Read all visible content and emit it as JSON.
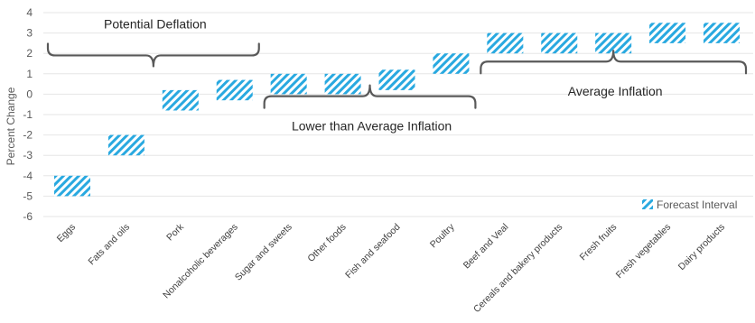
{
  "chart_data": {
    "type": "bar",
    "subtype": "floating-range",
    "ylabel": "Percent Change",
    "ylim": [
      -6,
      4
    ],
    "yticks": [
      -6,
      -5,
      -4,
      -3,
      -2,
      -1,
      0,
      1,
      2,
      3,
      4
    ],
    "grid": true,
    "legend": {
      "position": "bottom-right",
      "entries": [
        "Forecast Interval"
      ]
    },
    "pattern_color": "#29a9e0",
    "categories": [
      "Eggs",
      "Fats and oils",
      "Pork",
      "Nonalcoholic beverages",
      "Sugar and sweets",
      "Other foods",
      "Fish and seafood",
      "Poultry",
      "Beef and Veal",
      "Cereals and bakery products",
      "Fresh fruits",
      "Fresh vegetables",
      "Dairy products"
    ],
    "series": [
      {
        "name": "Forecast Interval",
        "low": [
          -5.0,
          -3.0,
          -0.8,
          -0.3,
          0.0,
          0.0,
          0.2,
          1.0,
          2.0,
          2.0,
          2.0,
          2.5,
          2.5
        ],
        "high": [
          -4.0,
          -2.0,
          0.2,
          0.7,
          1.0,
          1.0,
          1.2,
          2.0,
          3.0,
          3.0,
          3.0,
          3.5,
          3.5
        ]
      }
    ],
    "annotations": [
      {
        "text": "Potential Deflation",
        "from": 0,
        "to": 3,
        "side": "above",
        "value": 1.9
      },
      {
        "text": "Lower than Average Inflation",
        "from": 4,
        "to": 7,
        "side": "below",
        "value": -0.1
      },
      {
        "text": "Average Inflation",
        "from": 8,
        "to": 12,
        "side": "below",
        "value": 1.6
      }
    ]
  }
}
